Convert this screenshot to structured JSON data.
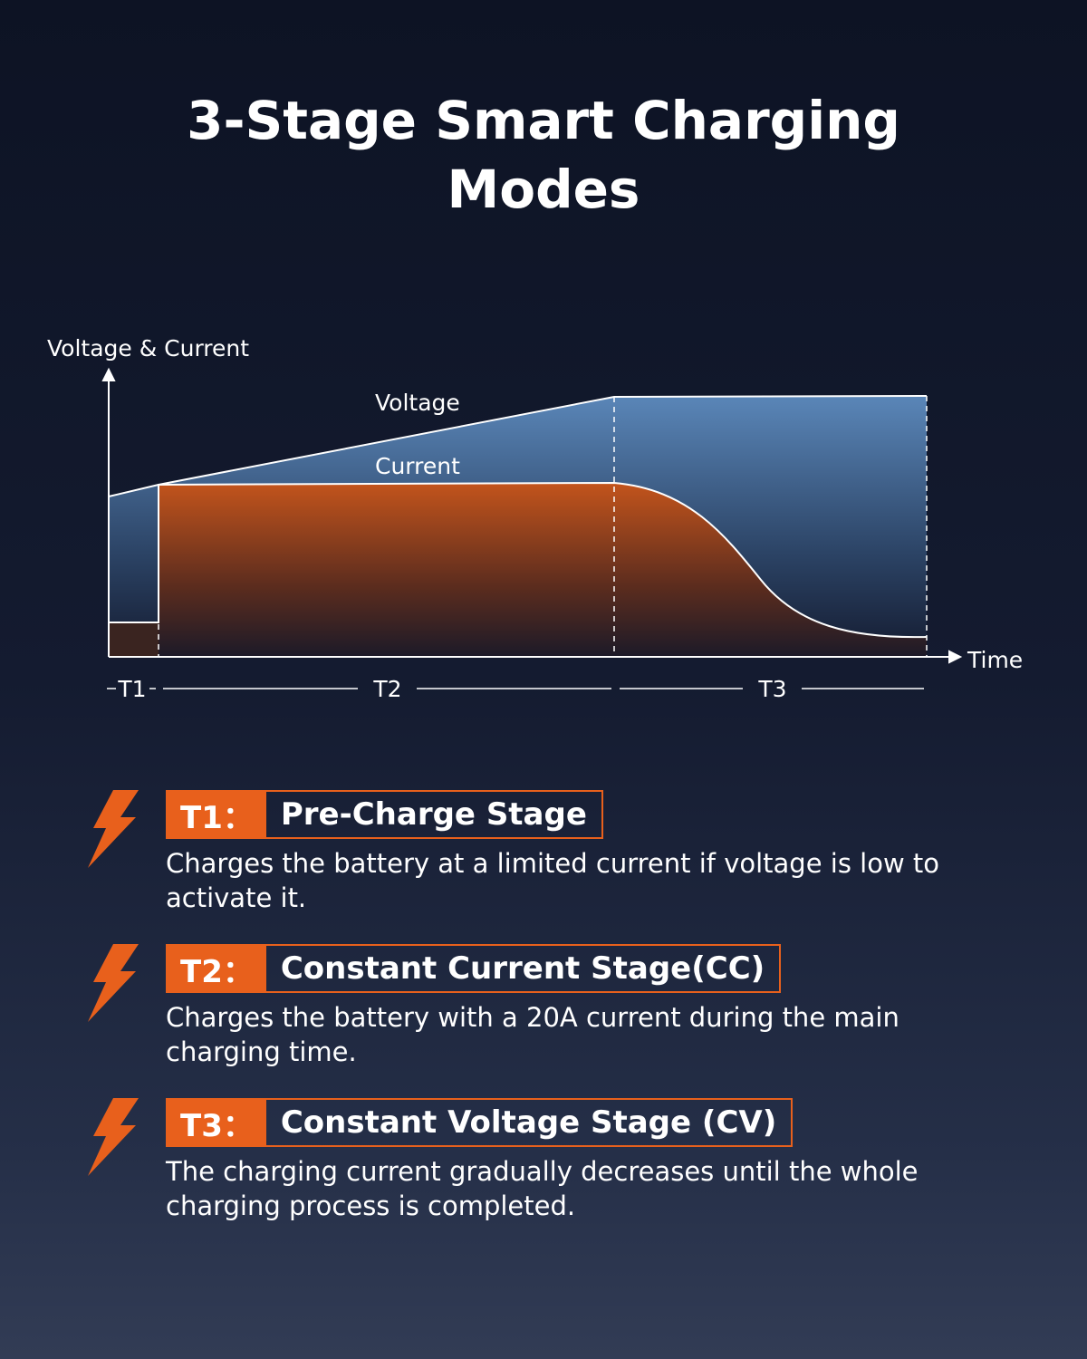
{
  "title": "3-Stage Smart Charging Modes",
  "diagram": {
    "y_axis_label": "Voltage & Current",
    "x_axis_label": "Time",
    "curves": [
      "Voltage",
      "Current"
    ],
    "stages": [
      "T1",
      "T2",
      "T3"
    ]
  },
  "items": [
    {
      "tag": "T1：",
      "heading": "Pre-Charge Stage",
      "text": "Charges the battery at a limited current if voltage is low to activate it."
    },
    {
      "tag": "T2：",
      "heading": "Constant Current Stage(CC)",
      "text": "Charges the battery with a 20A current during the main charging time."
    },
    {
      "tag": "T3：",
      "heading": "Constant Voltage Stage (CV)",
      "text": "The charging current gradually decreases until the whole charging process is completed."
    }
  ]
}
